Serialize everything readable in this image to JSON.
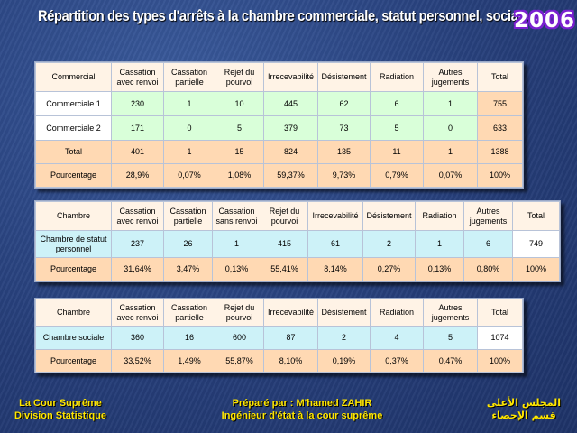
{
  "header": {
    "title": "Répartition des types d'arrêts à la chambre commerciale, statut personnel, sociale en",
    "year": "2006"
  },
  "table1": {
    "headers": [
      "Commercial",
      "Cassation avec renvoi",
      "Cassation partielle",
      "Rejet du pourvoi",
      "Irrecevabilité",
      "Désistement",
      "Radiation",
      "Autres jugements",
      "Total"
    ],
    "rows": [
      [
        "Commerciale 1",
        "230",
        "1",
        "10",
        "445",
        "62",
        "6",
        "1",
        "755"
      ],
      [
        "Commerciale 2",
        "171",
        "0",
        "5",
        "379",
        "73",
        "5",
        "0",
        "633"
      ],
      [
        "Total",
        "401",
        "1",
        "15",
        "824",
        "135",
        "11",
        "1",
        "1388"
      ],
      [
        "Pourcentage",
        "28,9%",
        "0,07%",
        "1,08%",
        "59,37%",
        "9,73%",
        "0,79%",
        "0,07%",
        "100%"
      ]
    ]
  },
  "table2": {
    "headers": [
      "Chambre",
      "Cassation avec renvoi",
      "Cassation partielle",
      "Cassation sans renvoi",
      "Rejet du pourvoi",
      "Irrecevabilité",
      "Désistement",
      "Radiation",
      "Autres jugements",
      "Total"
    ],
    "rows": [
      [
        "Chambre de statut personnel",
        "237",
        "26",
        "1",
        "415",
        "61",
        "2",
        "1",
        "6",
        "749"
      ],
      [
        "Pourcentage",
        "31,64%",
        "3,47%",
        "0,13%",
        "55,41%",
        "8,14%",
        "0,27%",
        "0,13%",
        "0,80%",
        "100%"
      ]
    ]
  },
  "table3": {
    "headers": [
      "Chambre",
      "Cassation avec renvoi",
      "Cassation partielle",
      "Rejet du pourvoi",
      "Irrecevabilité",
      "Désistement",
      "Radiation",
      "Autres jugements",
      "Total"
    ],
    "rows": [
      [
        "Chambre sociale",
        "360",
        "16",
        "600",
        "87",
        "2",
        "4",
        "5",
        "1074"
      ],
      [
        "Pourcentage",
        "33,52%",
        "1,49%",
        "55,87%",
        "8,10%",
        "0,19%",
        "0,37%",
        "0,47%",
        "100%"
      ]
    ]
  },
  "footer": {
    "left_line1": "La Cour Suprême",
    "left_line2": "Division Statistique",
    "center_line1": "Préparé par : M'hamed ZAHIR",
    "center_line2": "Ingénieur d'état à la cour suprême",
    "right_line1": "المجلس الأعلى",
    "right_line2": "قسم الإحصاء"
  },
  "colors": {
    "background": "#2a4583",
    "title": "#ffffff",
    "year_outline": "#7a20d0",
    "footer_text": "#ffe600",
    "cell_peach": "#ffd9b3",
    "cell_green": "#d9ffd9",
    "cell_cyan": "#cdf2f8"
  }
}
